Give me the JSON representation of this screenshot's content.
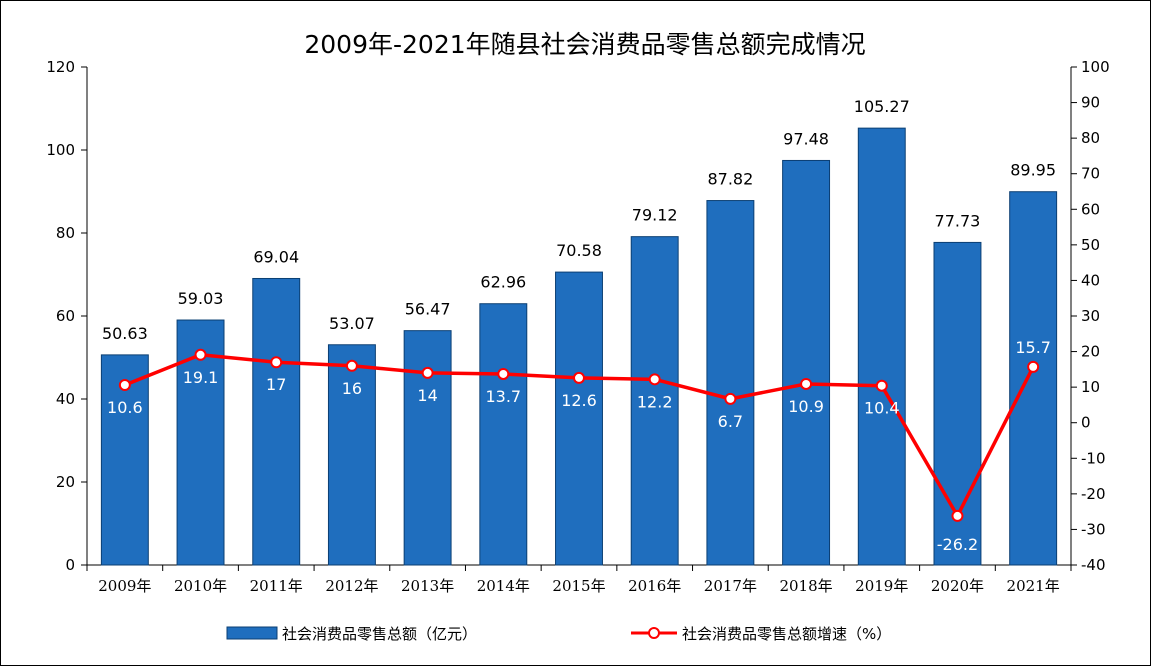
{
  "chart_data": {
    "type": "bar",
    "title": "2009年-2021年随县社会消费品零售总额完成情况",
    "categories": [
      "2009年",
      "2010年",
      "2011年",
      "2012年",
      "2013年",
      "2014年",
      "2015年",
      "2016年",
      "2017年",
      "2018年",
      "2019年",
      "2020年",
      "2021年"
    ],
    "series": [
      {
        "name": "社会消费品零售总额（亿元）",
        "type": "bar",
        "axis": "left",
        "color": "#1f6ebe",
        "values": [
          50.63,
          59.03,
          69.04,
          53.07,
          56.47,
          62.96,
          70.58,
          79.12,
          87.82,
          97.48,
          105.27,
          77.73,
          89.95
        ],
        "labels": [
          "50.63",
          "59.03",
          "69.04",
          "53.07",
          "56.47",
          "62.96",
          "70.58",
          "79.12",
          "87.82",
          "97.48",
          "105.27",
          "77.73",
          "89.95"
        ]
      },
      {
        "name": "社会消费品零售总额增速（%）",
        "type": "line",
        "axis": "right",
        "color": "#ff0000",
        "values": [
          10.6,
          19.1,
          17,
          16,
          14,
          13.7,
          12.6,
          12.2,
          6.7,
          10.9,
          10.4,
          -26.2,
          15.7
        ],
        "labels": [
          "10.6",
          "19.1",
          "17",
          "16",
          "14",
          "13.7",
          "12.6",
          "12.2",
          "6.7",
          "10.9",
          "10.4",
          "-26.2",
          "15.7"
        ]
      }
    ],
    "left_axis": {
      "min": 0,
      "max": 120,
      "step": 20,
      "ticks": [
        "0",
        "20",
        "40",
        "60",
        "80",
        "100",
        "120"
      ]
    },
    "right_axis": {
      "min": -40,
      "max": 100,
      "step": 10,
      "ticks": [
        "-40",
        "-30",
        "-20",
        "-10",
        "0",
        "10",
        "20",
        "30",
        "40",
        "50",
        "60",
        "70",
        "80",
        "90",
        "100"
      ]
    },
    "grid": false,
    "legend_position": "bottom"
  }
}
